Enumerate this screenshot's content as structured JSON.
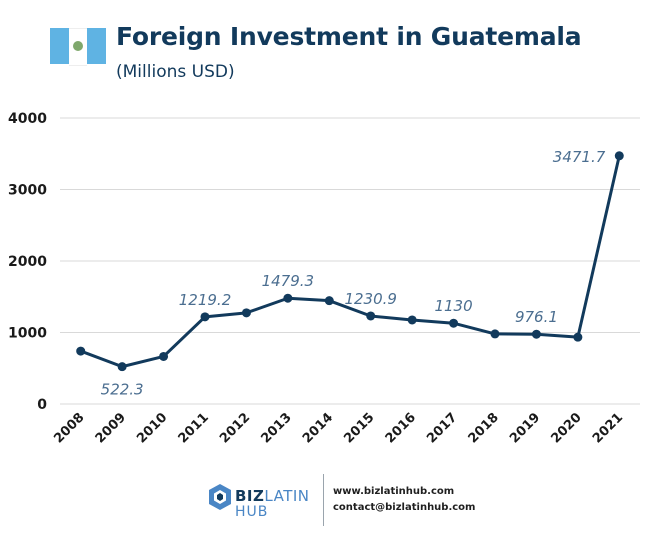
{
  "header": {
    "title": "Foreign Investment in Guatemala",
    "subtitle": "(Millions USD)"
  },
  "colors": {
    "primary": "#123a5c",
    "label": "#4b6e90",
    "grid": "#d9d9d9",
    "flag_blue": "#5fb3e3",
    "flag_white": "#ffffff",
    "emblem": "#7fa86c"
  },
  "chart_data": {
    "type": "line",
    "title": "Foreign Investment in Guatemala",
    "subtitle": "(Millions USD)",
    "xlabel": "",
    "ylabel": "",
    "ylim": [
      0,
      4000
    ],
    "yticks": [
      0,
      1000,
      2000,
      3000,
      4000
    ],
    "grid": true,
    "categories": [
      "2008",
      "2009",
      "2010",
      "2011",
      "2012",
      "2013",
      "2014",
      "2015",
      "2016",
      "2017",
      "2018",
      "2019",
      "2020",
      "2021"
    ],
    "values": [
      740,
      522.3,
      665,
      1219.2,
      1275,
      1479.3,
      1445,
      1230.9,
      1175,
      1130,
      980,
      976.1,
      935,
      3471.7
    ],
    "data_labels": [
      {
        "index": 1,
        "text": "522.3",
        "placement": "below"
      },
      {
        "index": 3,
        "text": "1219.2",
        "placement": "above"
      },
      {
        "index": 5,
        "text": "1479.3",
        "placement": "above"
      },
      {
        "index": 7,
        "text": "1230.9",
        "placement": "above"
      },
      {
        "index": 9,
        "text": "1130",
        "placement": "above"
      },
      {
        "index": 11,
        "text": "976.1",
        "placement": "above"
      },
      {
        "index": 13,
        "text": "3471.7",
        "placement": "left"
      }
    ]
  },
  "footer": {
    "logo_word1": "BIZ",
    "logo_word2": "LATIN",
    "logo_word3": "HUB",
    "website": "www.bizlatinhub.com",
    "email": "contact@bizlatinhub.com"
  }
}
